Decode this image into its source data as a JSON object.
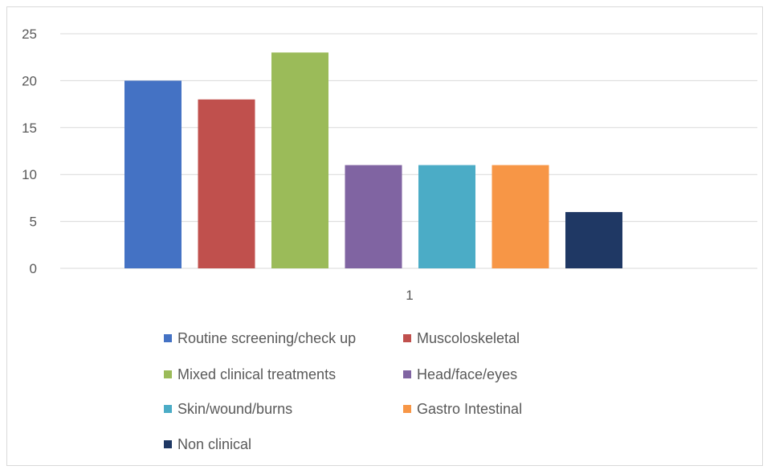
{
  "chart_data": {
    "type": "bar",
    "categories": [
      "1"
    ],
    "series": [
      {
        "name": "Routine screening/check up",
        "values": [
          20
        ],
        "color": "#4472c4"
      },
      {
        "name": "Muscoloskeletal",
        "values": [
          18
        ],
        "color": "#c0504d"
      },
      {
        "name": "Mixed clinical treatments",
        "values": [
          23
        ],
        "color": "#9bbb59"
      },
      {
        "name": "Head/face/eyes",
        "values": [
          11
        ],
        "color": "#8064a2"
      },
      {
        "name": "Skin/wound/burns",
        "values": [
          11
        ],
        "color": "#4bacc6"
      },
      {
        "name": "Gastro Intestinal",
        "values": [
          11
        ],
        "color": "#f79646"
      },
      {
        "name": "Non clinical",
        "values": [
          6
        ],
        "color": "#1f3864"
      }
    ],
    "y_ticks": [
      "0",
      "5",
      "10",
      "15",
      "20",
      "25"
    ],
    "ylim": [
      0,
      25
    ],
    "grid": true,
    "legend_position": "bottom",
    "title": "",
    "xlabel": "",
    "ylabel": ""
  }
}
